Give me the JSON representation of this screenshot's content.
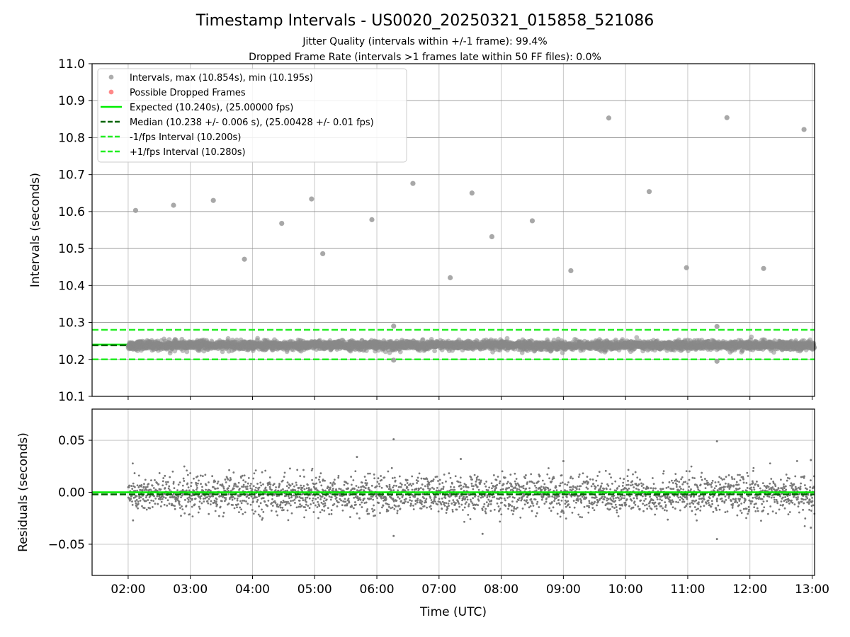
{
  "chart_data": [
    {
      "type": "scatter",
      "title": "Timestamp Intervals - US0020_20250321_015858_521086",
      "subtitle_lines": [
        "Jitter Quality (intervals within +/-1 frame): 99.4%",
        "Dropped Frame Rate (intervals >1 frames late within 50 FF files): 0.0%"
      ],
      "xlabel": "",
      "ylabel": "Intervals (seconds)",
      "x_unit": "hours (UTC)",
      "xlim": [
        1.42,
        13.04
      ],
      "ylim": [
        10.1,
        11.0
      ],
      "yticks": [
        10.1,
        10.2,
        10.3,
        10.4,
        10.5,
        10.6,
        10.7,
        10.8,
        10.9,
        11.0
      ],
      "ytick_labels": [
        "10.1",
        "10.2",
        "10.3",
        "10.4",
        "10.5",
        "10.6",
        "10.7",
        "10.8",
        "10.9",
        "11.0"
      ],
      "grid": true,
      "legend_position": "top-left",
      "legend": [
        {
          "label": "Intervals, max (10.854s), min (10.195s)",
          "kind": "marker",
          "color": "#999999"
        },
        {
          "label": "Possible Dropped Frames",
          "kind": "marker",
          "color": "#ff6b6b"
        },
        {
          "label": "Expected (10.240s), (25.00000 fps)",
          "kind": "solid",
          "color": "#00ee00"
        },
        {
          "label": "Median (10.238 +/- 0.006 s), (25.00428 +/- 0.01 fps)",
          "kind": "dashed",
          "color": "#006400"
        },
        {
          "label": "-1/fps Interval (10.200s)",
          "kind": "dashed",
          "color": "#22ee22"
        },
        {
          "label": "+1/fps Interval (10.280s)",
          "kind": "dashed",
          "color": "#22ee22"
        }
      ],
      "reference_lines": [
        {
          "name": "Expected",
          "y": 10.24,
          "style": "solid",
          "color": "#00ee00"
        },
        {
          "name": "Median",
          "y": 10.238,
          "style": "dashed",
          "color": "#006400"
        },
        {
          "name": "-1/fps Interval",
          "y": 10.2,
          "style": "dashed",
          "color": "#22ee22"
        },
        {
          "name": "+1/fps Interval",
          "y": 10.28,
          "style": "dashed",
          "color": "#22ee22"
        }
      ],
      "dense_band": {
        "x_start": 2.0,
        "x_end": 13.04,
        "center": 10.238,
        "spread": 0.006,
        "point_count": 3800,
        "color": "#888888"
      },
      "outliers": [
        {
          "x": 2.12,
          "y": 10.603
        },
        {
          "x": 2.73,
          "y": 10.617
        },
        {
          "x": 3.37,
          "y": 10.63
        },
        {
          "x": 3.87,
          "y": 10.471
        },
        {
          "x": 4.47,
          "y": 10.568
        },
        {
          "x": 4.95,
          "y": 10.634
        },
        {
          "x": 5.13,
          "y": 10.486
        },
        {
          "x": 5.92,
          "y": 10.578
        },
        {
          "x": 6.58,
          "y": 10.676
        },
        {
          "x": 7.18,
          "y": 10.421
        },
        {
          "x": 7.53,
          "y": 10.65
        },
        {
          "x": 7.85,
          "y": 10.532
        },
        {
          "x": 8.5,
          "y": 10.575
        },
        {
          "x": 9.12,
          "y": 10.44
        },
        {
          "x": 9.73,
          "y": 10.853
        },
        {
          "x": 10.38,
          "y": 10.654
        },
        {
          "x": 10.98,
          "y": 10.448
        },
        {
          "x": 11.63,
          "y": 10.854
        },
        {
          "x": 12.22,
          "y": 10.446
        },
        {
          "x": 12.87,
          "y": 10.822
        },
        {
          "x": 6.27,
          "y": 10.29
        },
        {
          "x": 11.47,
          "y": 10.289
        },
        {
          "x": 6.27,
          "y": 10.198
        },
        {
          "x": 11.47,
          "y": 10.195
        }
      ]
    },
    {
      "type": "scatter",
      "title": "",
      "xlabel": "Time (UTC)",
      "ylabel": "Residuals (seconds)",
      "xlim": [
        1.42,
        13.04
      ],
      "ylim": [
        -0.08,
        0.08
      ],
      "yticks": [
        -0.05,
        0.0,
        0.05
      ],
      "ytick_labels": [
        "−0.05",
        "0.00",
        "0.05"
      ],
      "xticks": [
        2,
        3,
        4,
        5,
        6,
        7,
        8,
        9,
        10,
        11,
        12,
        13
      ],
      "xtick_labels": [
        "02:00",
        "03:00",
        "04:00",
        "05:00",
        "06:00",
        "07:00",
        "08:00",
        "09:00",
        "10:00",
        "11:00",
        "12:00",
        "13:00"
      ],
      "grid": true,
      "reference_lines": [
        {
          "name": "Expected",
          "y": 0.0,
          "style": "solid",
          "color": "#00ee00"
        },
        {
          "name": "Median",
          "y": -0.002,
          "style": "dashed",
          "color": "#006400"
        }
      ],
      "dense_band": {
        "x_start": 2.0,
        "x_end": 13.04,
        "center": -0.002,
        "spread": 0.009,
        "point_count": 2800,
        "color": "#777777"
      },
      "outliers": [
        {
          "x": 6.27,
          "y": 0.051
        },
        {
          "x": 11.47,
          "y": 0.049
        },
        {
          "x": 11.47,
          "y": -0.045
        },
        {
          "x": 6.27,
          "y": -0.042
        },
        {
          "x": 5.68,
          "y": 0.034
        },
        {
          "x": 12.98,
          "y": 0.031
        },
        {
          "x": 12.98,
          "y": -0.034
        },
        {
          "x": 9.0,
          "y": 0.03
        },
        {
          "x": 7.35,
          "y": 0.032
        },
        {
          "x": 7.7,
          "y": -0.04
        }
      ]
    }
  ]
}
